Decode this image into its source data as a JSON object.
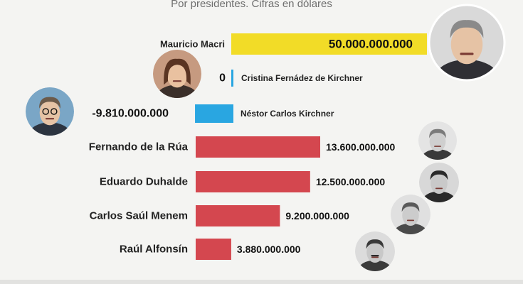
{
  "header": {
    "subtitle": "Por presidentes. Cifras en dólares"
  },
  "colors": {
    "positive_yellow": "#f2dc27",
    "negative_blue": "#29a6e1",
    "red": "#d4474f",
    "background": "#f4f4f2"
  },
  "chart_data": {
    "type": "bar",
    "subtitle": "Por presidentes. Cifras en dólares",
    "categories": [
      "Mauricio Macri",
      "Cristina Fernádez de Kirchner",
      "Néstor Carlos Kirchner",
      "Fernando de la Rúa",
      "Eduardo Duhalde",
      "Carlos Saúl Menem",
      "Raúl Alfonsín"
    ],
    "values": [
      50000000000,
      0,
      -9810000000,
      13600000000,
      12500000000,
      9200000000,
      3880000000
    ],
    "value_labels": [
      "50.000.000.000",
      "0",
      "-9.810.000.000",
      "13.600.000.000",
      "12.500.000.000",
      "9.200.000.000",
      "3.880.000.000"
    ],
    "bar_colors": [
      "#f2dc27",
      "#29a6e1",
      "#29a6e1",
      "#d4474f",
      "#d4474f",
      "#d4474f",
      "#d4474f"
    ],
    "orientation": "horizontal",
    "legend": "none",
    "grid": false
  }
}
